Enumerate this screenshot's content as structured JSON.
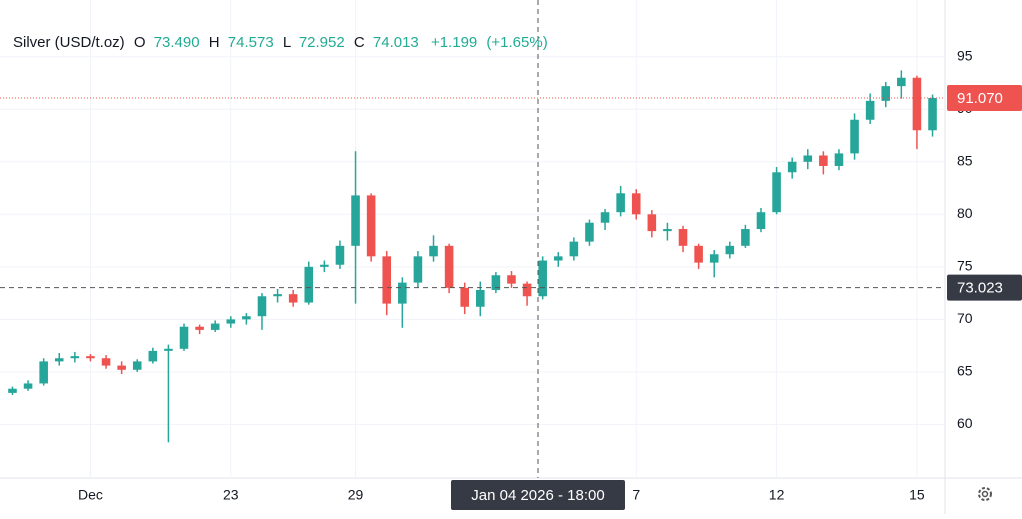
{
  "chart_data": {
    "type": "candlestick",
    "header": {
      "symbol": "Silver (USD/t.oz)",
      "open_label": "O",
      "open": "73.490",
      "high_label": "H",
      "high": "74.573",
      "low_label": "L",
      "low": "72.952",
      "close_label": "C",
      "close": "74.013",
      "change": "+1.199",
      "change_pct": "(+1.65%)"
    },
    "categories": [
      null,
      null,
      null,
      null,
      null,
      "Dec",
      null,
      null,
      null,
      null,
      null,
      null,
      null,
      null,
      "23",
      null,
      null,
      null,
      null,
      null,
      null,
      null,
      "29",
      null,
      null,
      null,
      null,
      null,
      null,
      null,
      null,
      null,
      null,
      null,
      null,
      null,
      null,
      null,
      null,
      null,
      "7",
      null,
      null,
      null,
      null,
      null,
      null,
      null,
      null,
      "12",
      null,
      null,
      null,
      null,
      null,
      null,
      null,
      null,
      "15",
      null
    ],
    "open": [
      63.0,
      63.4,
      63.9,
      66.0,
      66.3,
      66.5,
      66.3,
      65.6,
      65.2,
      66.0,
      67.0,
      67.2,
      69.3,
      69.0,
      69.6,
      70.0,
      70.3,
      72.2,
      72.4,
      71.6,
      75.0,
      75.2,
      77.0,
      81.8,
      76.0,
      71.5,
      73.5,
      76.0,
      77.0,
      73.0,
      71.2,
      72.8,
      74.2,
      73.4,
      72.2,
      75.6,
      76.0,
      77.4,
      79.2,
      80.2,
      82.0,
      80.0,
      78.4,
      78.6,
      77.0,
      75.4,
      76.2,
      77.0,
      78.6,
      80.2,
      84.0,
      85.0,
      85.6,
      84.6,
      85.8,
      89.0,
      90.8,
      92.2,
      93.0,
      88.0
    ],
    "high": [
      63.6,
      64.2,
      66.3,
      66.8,
      66.9,
      66.7,
      66.6,
      66.0,
      66.2,
      67.3,
      67.6,
      69.6,
      69.5,
      69.9,
      70.3,
      70.6,
      72.5,
      72.9,
      72.8,
      75.5,
      75.6,
      77.5,
      86.0,
      82.0,
      76.5,
      74.0,
      76.5,
      78.0,
      77.2,
      73.5,
      73.6,
      74.5,
      74.6,
      73.6,
      76.0,
      76.4,
      77.8,
      79.5,
      80.5,
      82.7,
      82.4,
      80.4,
      79.2,
      78.9,
      77.2,
      76.6,
      77.4,
      79.0,
      80.6,
      84.5,
      85.4,
      86.2,
      86.0,
      86.2,
      89.6,
      91.5,
      92.6,
      93.7,
      93.2,
      91.4
    ],
    "low": [
      62.8,
      63.2,
      63.7,
      65.6,
      65.9,
      66.0,
      65.3,
      64.8,
      65.0,
      65.8,
      58.3,
      67.0,
      68.6,
      68.8,
      69.2,
      69.5,
      69.0,
      71.6,
      71.2,
      71.4,
      74.5,
      74.8,
      71.5,
      75.5,
      70.4,
      69.2,
      73.0,
      75.5,
      72.5,
      70.5,
      70.3,
      72.5,
      73.0,
      71.3,
      71.9,
      75.0,
      75.6,
      77.0,
      78.5,
      79.8,
      79.5,
      77.8,
      77.5,
      76.4,
      74.8,
      74.0,
      75.8,
      76.8,
      78.3,
      80.0,
      83.4,
      84.3,
      83.8,
      84.2,
      85.2,
      88.6,
      90.2,
      91.0,
      86.2,
      87.4
    ],
    "close": [
      63.4,
      63.9,
      66.0,
      66.3,
      66.5,
      66.3,
      65.6,
      65.2,
      66.0,
      67.0,
      67.2,
      69.3,
      69.0,
      69.6,
      70.0,
      70.3,
      72.2,
      72.4,
      71.6,
      75.0,
      75.2,
      77.0,
      81.8,
      76.0,
      71.5,
      73.5,
      76.0,
      77.0,
      73.0,
      71.2,
      72.8,
      74.2,
      73.4,
      72.2,
      75.6,
      76.0,
      77.4,
      79.2,
      80.2,
      82.0,
      80.0,
      78.4,
      78.6,
      77.0,
      75.4,
      76.2,
      77.0,
      78.6,
      80.2,
      84.0,
      85.0,
      85.6,
      84.6,
      85.8,
      89.0,
      90.8,
      92.2,
      93.0,
      88.0,
      91.07
    ],
    "up_color": "#26a69a",
    "down_color": "#ef5350",
    "ylim": [
      54.9,
      100.4
    ],
    "yticks": [
      60,
      65,
      70,
      75,
      80,
      85,
      90,
      95
    ],
    "grid": true,
    "last_price": {
      "value": 91.07,
      "label": "91.070"
    },
    "crosshair": {
      "x": 33.7,
      "x_label": "Jan 04 2026 - 18:00",
      "y": {
        "value": 73.023,
        "label": "73.023"
      }
    }
  }
}
